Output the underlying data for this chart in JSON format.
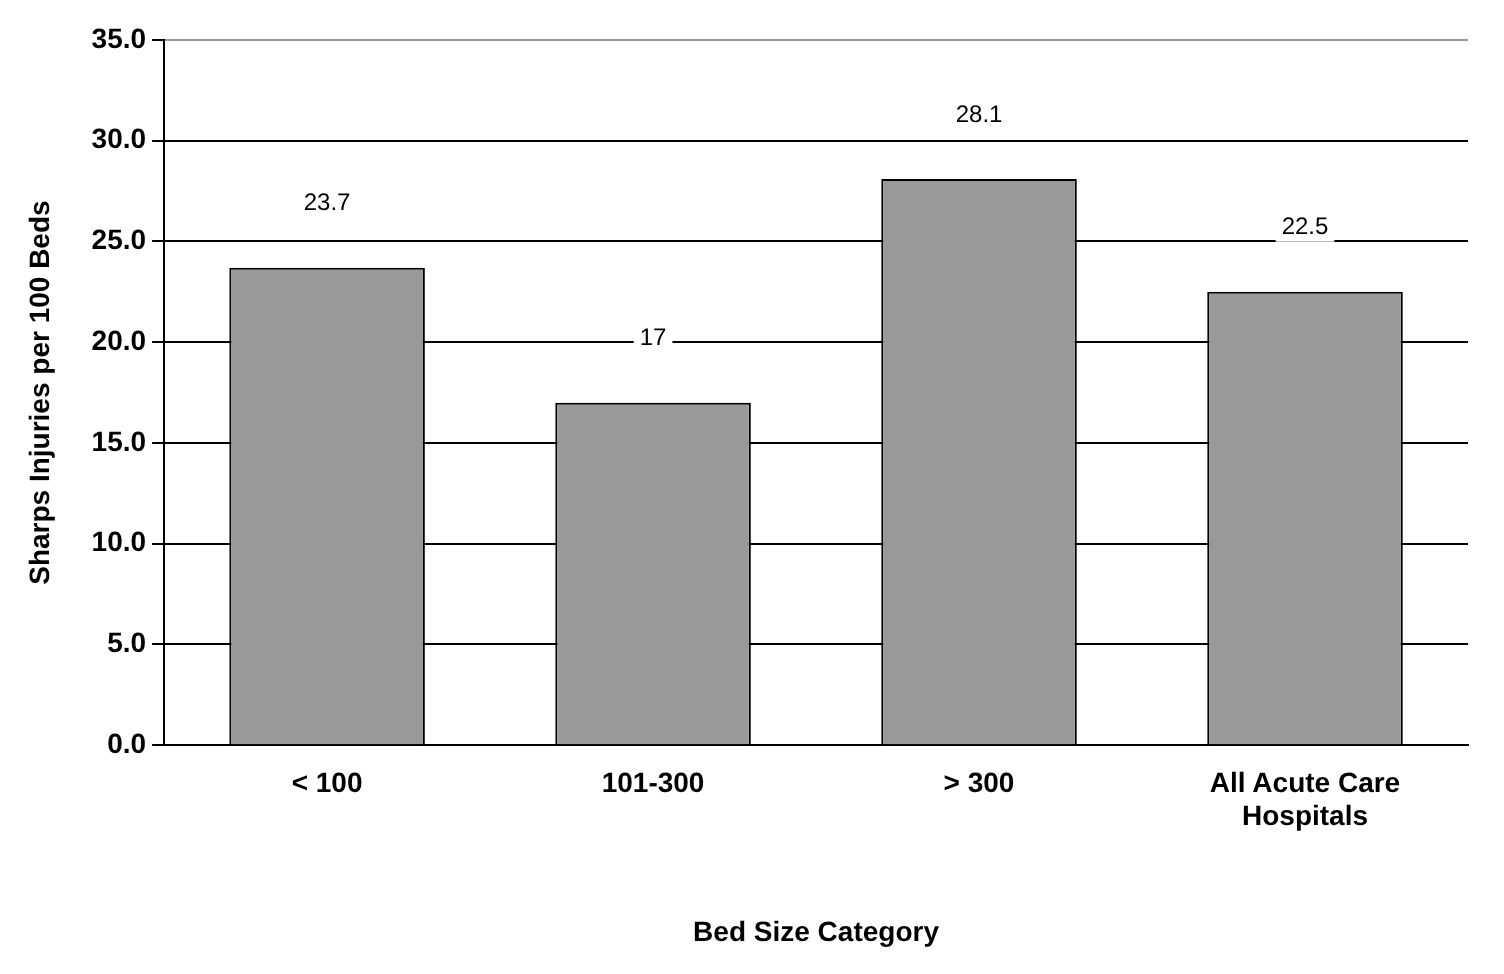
{
  "chart_data": {
    "type": "bar",
    "xlabel": "Bed Size Category",
    "ylabel": "Sharps Injuries per 100 Beds",
    "categories": [
      "< 100",
      "101-300",
      "> 300",
      "All Acute Care Hospitals"
    ],
    "values": [
      23.7,
      17,
      28.1,
      22.5
    ],
    "color": "#999999",
    "data_labels": true,
    "grid": "y",
    "legend": false,
    "ylim": [
      0,
      35
    ],
    "yticks": [
      {
        "value": 0,
        "label": "0.0"
      },
      {
        "value": 5,
        "label": "5.0"
      },
      {
        "value": 10,
        "label": "10.0"
      },
      {
        "value": 15,
        "label": "15.0"
      },
      {
        "value": 20,
        "label": "20.0"
      },
      {
        "value": 25,
        "label": "25.0"
      },
      {
        "value": 30,
        "label": "30.0"
      },
      {
        "value": 35,
        "label": "35.0"
      }
    ]
  }
}
